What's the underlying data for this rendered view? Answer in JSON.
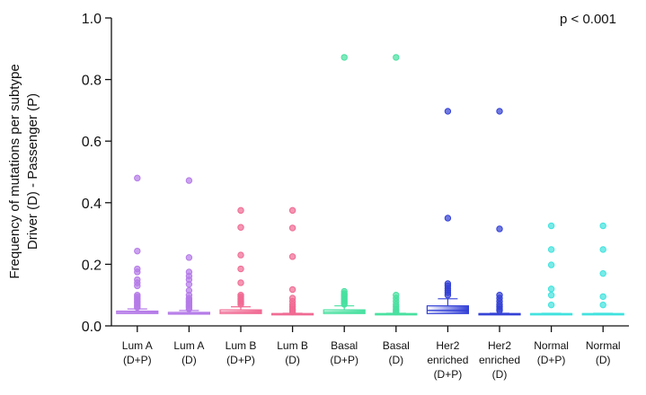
{
  "chart_data": {
    "type": "box",
    "annotation": "p < 0.001",
    "ylabel_lines": [
      "Frequency of  mutations per subtype",
      "Driver (D) - Passenger (P)"
    ],
    "ylim": [
      0,
      1.0
    ],
    "yticks": [
      "0.0",
      "0.2",
      "0.4",
      "0.6",
      "0.8",
      "1.0"
    ],
    "ytick_values": [
      0,
      0.2,
      0.4,
      0.6,
      0.8,
      1.0
    ],
    "grid": false,
    "categories": [
      {
        "lines": [
          "Lum A",
          "(D+P)"
        ],
        "color": "#b57be8",
        "q1": 0.04,
        "median": 0.044,
        "q3": 0.048,
        "whisker_high": 0.055,
        "outliers": [
          0.48,
          0.243,
          0.185,
          0.175,
          0.15,
          0.14,
          0.13,
          0.1,
          0.095,
          0.09,
          0.085,
          0.08,
          0.075,
          0.07,
          0.065,
          0.06
        ]
      },
      {
        "lines": [
          "Lum A",
          "(D)"
        ],
        "color": "#b57be8",
        "q1": 0.038,
        "median": 0.04,
        "q3": 0.044,
        "whisker_high": 0.05,
        "outliers": [
          0.472,
          0.222,
          0.175,
          0.162,
          0.15,
          0.135,
          0.115,
          0.1,
          0.09,
          0.085,
          0.08,
          0.075,
          0.07,
          0.065,
          0.06,
          0.055
        ]
      },
      {
        "lines": [
          "Lum B",
          "(D+P)"
        ],
        "color": "#f06a93",
        "q1": 0.04,
        "median": 0.045,
        "q3": 0.052,
        "whisker_high": 0.062,
        "outliers": [
          0.375,
          0.32,
          0.23,
          0.185,
          0.14,
          0.1,
          0.095,
          0.09,
          0.085,
          0.08,
          0.075,
          0.07
        ]
      },
      {
        "lines": [
          "Lum B",
          "(D)"
        ],
        "color": "#f06a93",
        "q1": 0.038,
        "median": 0.039,
        "q3": 0.04,
        "whisker_high": 0.041,
        "outliers": [
          0.375,
          0.318,
          0.225,
          0.118,
          0.09,
          0.08,
          0.07,
          0.062,
          0.055,
          0.05,
          0.045
        ]
      },
      {
        "lines": [
          "Basal",
          "(D+P)"
        ],
        "color": "#48e0a0",
        "q1": 0.04,
        "median": 0.045,
        "q3": 0.052,
        "whisker_high": 0.065,
        "outliers": [
          0.872,
          0.112,
          0.105,
          0.1,
          0.095,
          0.09,
          0.085,
          0.08,
          0.075,
          0.07
        ]
      },
      {
        "lines": [
          "Basal",
          "(D)"
        ],
        "color": "#48e0a0",
        "q1": 0.038,
        "median": 0.039,
        "q3": 0.04,
        "whisker_high": 0.041,
        "outliers": [
          0.872,
          0.1,
          0.09,
          0.08,
          0.07,
          0.062,
          0.055,
          0.05,
          0.045
        ]
      },
      {
        "lines": [
          "Her2",
          "enriched",
          "(D+P)"
        ],
        "color": "#3340d6",
        "q1": 0.04,
        "median": 0.05,
        "q3": 0.065,
        "whisker_high": 0.088,
        "outliers": [
          0.697,
          0.35,
          0.137,
          0.13,
          0.122,
          0.115,
          0.108,
          0.1
        ]
      },
      {
        "lines": [
          "Her2",
          "enriched",
          "(D)"
        ],
        "color": "#3340d6",
        "q1": 0.038,
        "median": 0.039,
        "q3": 0.04,
        "whisker_high": 0.041,
        "outliers": [
          0.697,
          0.315,
          0.1,
          0.09,
          0.08,
          0.07,
          0.062,
          0.055,
          0.05
        ]
      },
      {
        "lines": [
          "Normal",
          "(D+P)"
        ],
        "color": "#3fe2de",
        "q1": 0.038,
        "median": 0.039,
        "q3": 0.04,
        "whisker_high": 0.041,
        "outliers": [
          0.325,
          0.248,
          0.198,
          0.12,
          0.1,
          0.068
        ]
      },
      {
        "lines": [
          "Normal",
          "(D)"
        ],
        "color": "#3fe2de",
        "q1": 0.038,
        "median": 0.039,
        "q3": 0.04,
        "whisker_high": 0.041,
        "outliers": [
          0.325,
          0.248,
          0.17,
          0.095,
          0.068
        ]
      }
    ]
  }
}
